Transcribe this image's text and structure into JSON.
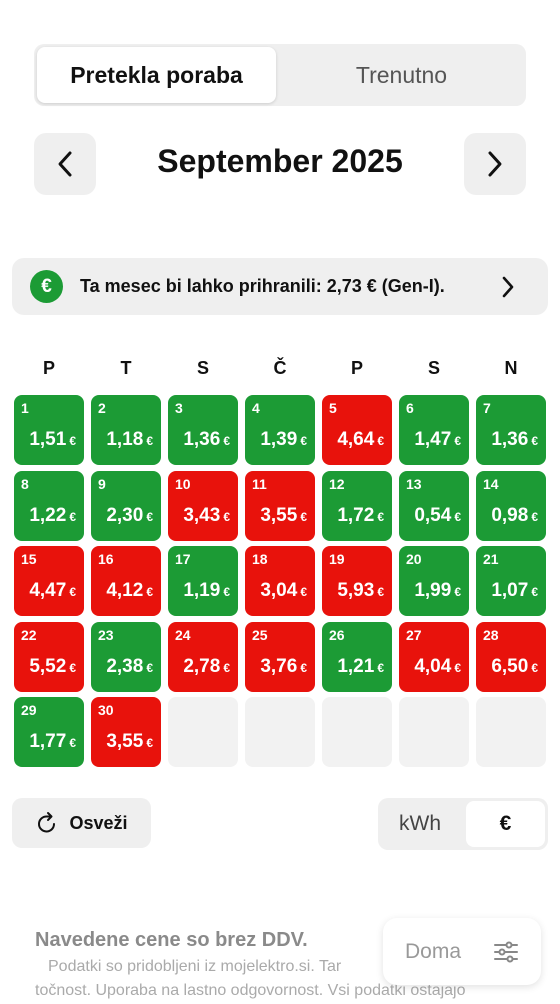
{
  "tabs": {
    "active": "Pretekla poraba",
    "inactive": "Trenutno"
  },
  "month_title": "September 2025",
  "savings_banner": {
    "icon": "€",
    "text": "Ta mesec bi lahko prihranili: 2,73 € (Gen-I)."
  },
  "calendar": {
    "weekdays": [
      "P",
      "T",
      "S",
      "Č",
      "P",
      "S",
      "N"
    ],
    "start_column": 0,
    "currency": "€",
    "colors": {
      "green": "#1c9b35",
      "red": "#e8120c"
    },
    "days": [
      {
        "day": 1,
        "amount": "1,51",
        "status": "green"
      },
      {
        "day": 2,
        "amount": "1,18",
        "status": "green"
      },
      {
        "day": 3,
        "amount": "1,36",
        "status": "green"
      },
      {
        "day": 4,
        "amount": "1,39",
        "status": "green"
      },
      {
        "day": 5,
        "amount": "4,64",
        "status": "red"
      },
      {
        "day": 6,
        "amount": "1,47",
        "status": "green"
      },
      {
        "day": 7,
        "amount": "1,36",
        "status": "green"
      },
      {
        "day": 8,
        "amount": "1,22",
        "status": "green"
      },
      {
        "day": 9,
        "amount": "2,30",
        "status": "green"
      },
      {
        "day": 10,
        "amount": "3,43",
        "status": "red"
      },
      {
        "day": 11,
        "amount": "3,55",
        "status": "red"
      },
      {
        "day": 12,
        "amount": "1,72",
        "status": "green"
      },
      {
        "day": 13,
        "amount": "0,54",
        "status": "green"
      },
      {
        "day": 14,
        "amount": "0,98",
        "status": "green"
      },
      {
        "day": 15,
        "amount": "4,47",
        "status": "red"
      },
      {
        "day": 16,
        "amount": "4,12",
        "status": "red"
      },
      {
        "day": 17,
        "amount": "1,19",
        "status": "green"
      },
      {
        "day": 18,
        "amount": "3,04",
        "status": "red"
      },
      {
        "day": 19,
        "amount": "5,93",
        "status": "red"
      },
      {
        "day": 20,
        "amount": "1,99",
        "status": "green"
      },
      {
        "day": 21,
        "amount": "1,07",
        "status": "green"
      },
      {
        "day": 22,
        "amount": "5,52",
        "status": "red"
      },
      {
        "day": 23,
        "amount": "2,38",
        "status": "green"
      },
      {
        "day": 24,
        "amount": "2,78",
        "status": "red"
      },
      {
        "day": 25,
        "amount": "3,76",
        "status": "red"
      },
      {
        "day": 26,
        "amount": "1,21",
        "status": "green"
      },
      {
        "day": 27,
        "amount": "4,04",
        "status": "red"
      },
      {
        "day": 28,
        "amount": "6,50",
        "status": "red"
      },
      {
        "day": 29,
        "amount": "1,77",
        "status": "green"
      },
      {
        "day": 30,
        "amount": "3,55",
        "status": "red"
      }
    ]
  },
  "refresh_button": "Osveži",
  "unit_toggle": {
    "options": [
      "kWh",
      "€"
    ],
    "active": 1
  },
  "footer": {
    "title": "Navedene cene so brez DDV.",
    "line1": "Podatki so pridobljeni iz mojelektro.si. Tar",
    "line2": "točnost. Uporaba na lastno odgovornost. Vsi podatki ostajajo"
  },
  "home_button": "Doma"
}
